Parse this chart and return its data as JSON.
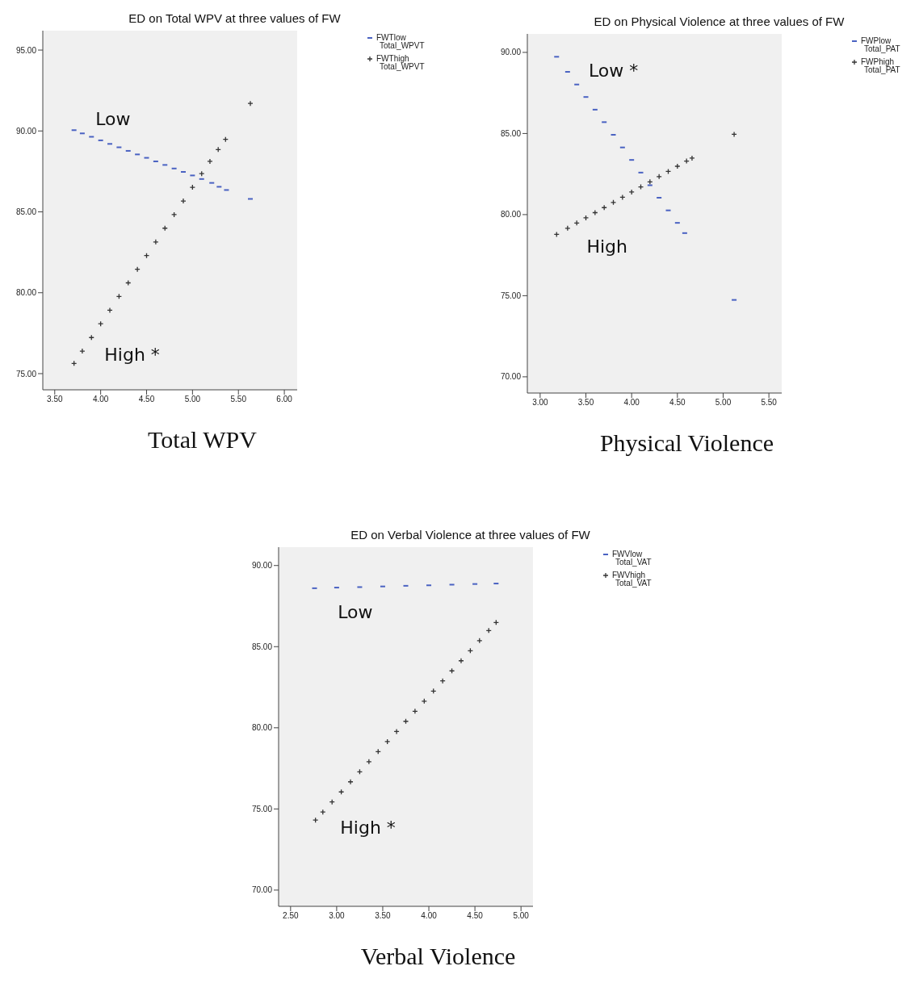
{
  "chart_data": [
    {
      "type": "scatter",
      "title": "ED on Total WPV at three values of FW",
      "xlabel": "Total WPV",
      "legend": "top right",
      "grid": false,
      "xlim": [
        3.37,
        6.14
      ],
      "ylim": [
        74.0,
        96.2
      ],
      "xticks": [
        {
          "value": 3.5,
          "label": "3.50"
        },
        {
          "value": 4,
          "label": "4.00"
        },
        {
          "value": 4.5,
          "label": "4.50"
        },
        {
          "value": 5,
          "label": "5.00"
        },
        {
          "value": 5.5,
          "label": "5.50"
        },
        {
          "value": 6,
          "label": "6.00"
        }
      ],
      "yticks": [
        {
          "value": 75,
          "label": "75.00"
        },
        {
          "value": 80,
          "label": "80.00"
        },
        {
          "value": 85,
          "label": "85.00"
        },
        {
          "value": 90,
          "label": "90.00"
        },
        {
          "value": 95,
          "label": "95.00"
        }
      ],
      "annotations": [
        "Low",
        "High *"
      ],
      "series": [
        {
          "name": "FWTlow Total_WPVT",
          "color": "#4a62c2",
          "x": [
            3.71,
            3.8,
            3.9,
            4.0,
            4.1,
            4.2,
            4.3,
            4.4,
            4.5,
            4.6,
            4.7,
            4.8,
            4.9,
            5.0,
            5.1,
            5.21,
            5.29,
            5.37,
            5.63
          ],
          "values": [
            90.05,
            89.85,
            89.64,
            89.42,
            89.2,
            88.99,
            88.77,
            88.55,
            88.34,
            88.12,
            87.9,
            87.68,
            87.47,
            87.25,
            87.03,
            86.79,
            86.55,
            86.35,
            85.8
          ]
        },
        {
          "name": "FWThigh Total_WPVT",
          "color": "#333333",
          "marker": "cross",
          "x": [
            3.71,
            3.8,
            3.9,
            4.0,
            4.1,
            4.2,
            4.3,
            4.4,
            4.5,
            4.6,
            4.7,
            4.8,
            4.9,
            5.0,
            5.1,
            5.19,
            5.28,
            5.36,
            5.63
          ],
          "values": [
            75.63,
            76.39,
            77.23,
            78.08,
            78.92,
            79.77,
            80.61,
            81.45,
            82.3,
            83.14,
            83.99,
            84.83,
            85.67,
            86.52,
            87.36,
            88.12,
            88.85,
            89.48,
            91.7
          ]
        }
      ]
    },
    {
      "type": "scatter",
      "title": "ED on Physical Violence at three values of FW",
      "xlabel": "Physical Violence",
      "legend": "top right",
      "grid": false,
      "xlim": [
        2.86,
        5.64
      ],
      "ylim": [
        69.0,
        91.14
      ],
      "xticks": [
        {
          "value": 3,
          "label": "3.00"
        },
        {
          "value": 3.5,
          "label": "3.50"
        },
        {
          "value": 4,
          "label": "4.00"
        },
        {
          "value": 4.5,
          "label": "4.50"
        },
        {
          "value": 5,
          "label": "5.00"
        },
        {
          "value": 5.5,
          "label": "5.50"
        }
      ],
      "yticks": [
        {
          "value": 70,
          "label": "70.00"
        },
        {
          "value": 75,
          "label": "75.00"
        },
        {
          "value": 80,
          "label": "80.00"
        },
        {
          "value": 85,
          "label": "85.00"
        },
        {
          "value": 90,
          "label": "90.00"
        }
      ],
      "annotations": [
        "Low *",
        "High"
      ],
      "series": [
        {
          "name": "FWPlow Total_PAT",
          "color": "#4a62c2",
          "x": [
            3.18,
            3.3,
            3.4,
            3.5,
            3.6,
            3.7,
            3.8,
            3.9,
            4.0,
            4.1,
            4.2,
            4.3,
            4.4,
            4.5,
            4.58,
            5.12
          ],
          "values": [
            89.73,
            88.8,
            88.02,
            87.25,
            86.47,
            85.7,
            84.92,
            84.14,
            83.37,
            82.59,
            81.81,
            81.04,
            80.26,
            79.49,
            78.86,
            74.74
          ]
        },
        {
          "name": "FWPhigh Total_PAT",
          "color": "#333333",
          "marker": "cross",
          "x": [
            3.18,
            3.3,
            3.4,
            3.5,
            3.6,
            3.7,
            3.8,
            3.9,
            4.0,
            4.1,
            4.2,
            4.3,
            4.4,
            4.5,
            4.6,
            4.66,
            5.12
          ],
          "values": [
            78.78,
            79.16,
            79.48,
            79.8,
            80.12,
            80.43,
            80.75,
            81.07,
            81.39,
            81.71,
            82.02,
            82.34,
            82.66,
            82.98,
            83.3,
            83.48,
            84.95
          ]
        }
      ]
    },
    {
      "type": "scatter",
      "title": "ED on Verbal Violence at three values of FW",
      "xlabel": "Verbal Violence",
      "legend": "top right",
      "grid": false,
      "xlim": [
        2.37,
        5.13
      ],
      "ylim": [
        69.0,
        91.13
      ],
      "xticks": [
        {
          "value": 2.5,
          "label": "2.50"
        },
        {
          "value": 3,
          "label": "3.00"
        },
        {
          "value": 3.5,
          "label": "3.50"
        },
        {
          "value": 4,
          "label": "4.00"
        },
        {
          "value": 4.5,
          "label": "4.50"
        },
        {
          "value": 5,
          "label": "5.00"
        }
      ],
      "yticks": [
        {
          "value": 70,
          "label": "70.00"
        },
        {
          "value": 75,
          "label": "75.00"
        },
        {
          "value": 80,
          "label": "80.00"
        },
        {
          "value": 85,
          "label": "85.00"
        },
        {
          "value": 90,
          "label": "90.00"
        }
      ],
      "annotations": [
        "Low",
        "High *"
      ],
      "series": [
        {
          "name": "FWVlow Total_VAT",
          "color": "#4a62c2",
          "x": [
            2.76,
            3.0,
            3.25,
            3.5,
            3.75,
            4.0,
            4.25,
            4.5,
            4.73
          ],
          "values": [
            88.6,
            88.64,
            88.67,
            88.71,
            88.75,
            88.78,
            88.82,
            88.86,
            88.89
          ]
        },
        {
          "name": "FWVhigh Total_VAT",
          "color": "#333333",
          "marker": "cross",
          "x": [
            2.77,
            2.85,
            2.95,
            3.05,
            3.15,
            3.25,
            3.35,
            3.45,
            3.55,
            3.65,
            3.75,
            3.85,
            3.95,
            4.05,
            4.15,
            4.25,
            4.35,
            4.45,
            4.55,
            4.65,
            4.73
          ],
          "values": [
            74.31,
            74.81,
            75.43,
            76.05,
            76.67,
            77.29,
            77.91,
            78.53,
            79.15,
            79.77,
            80.4,
            81.02,
            81.64,
            82.26,
            82.89,
            83.51,
            84.13,
            84.75,
            85.37,
            85.99,
            86.49
          ]
        }
      ]
    }
  ]
}
